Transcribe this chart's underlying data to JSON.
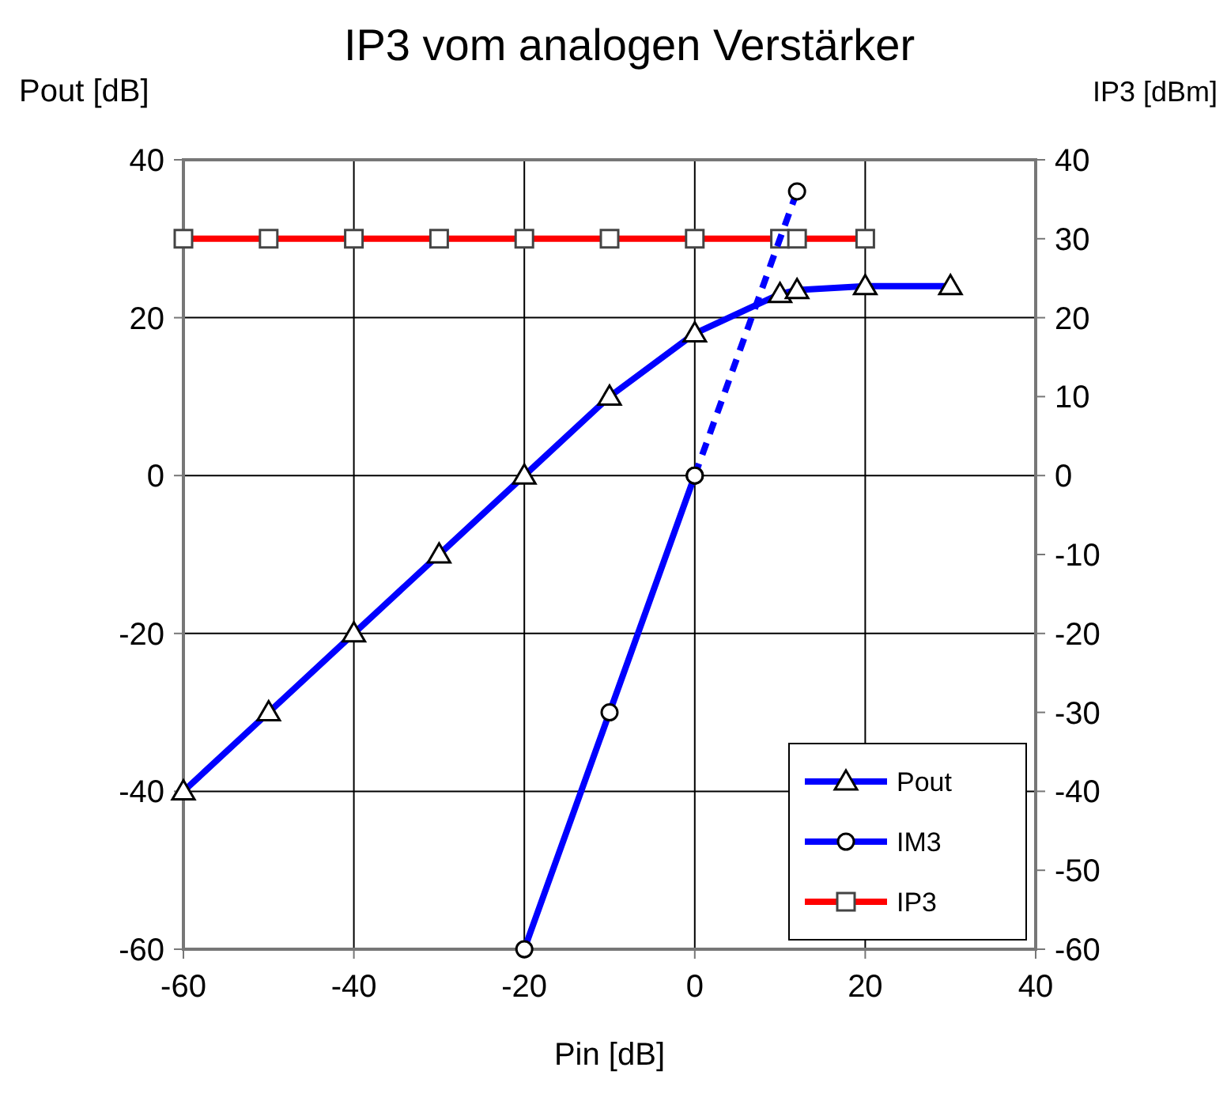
{
  "chart_data": {
    "type": "line",
    "title": "IP3 vom analogen Verstärker",
    "xlabel": "Pin [dB]",
    "ylabel": "Pout [dB]",
    "y2label": "IP3 [dBm]",
    "xlim": [
      -60,
      40
    ],
    "xticks": [
      -60,
      -40,
      -20,
      0,
      20,
      40
    ],
    "ylim": [
      -60,
      40
    ],
    "yticks": [
      -60,
      -40,
      -20,
      0,
      20,
      40
    ],
    "y2lim": [
      -60,
      40
    ],
    "y2ticks": [
      -60,
      -50,
      -40,
      -30,
      -20,
      -10,
      0,
      10,
      20,
      30,
      40
    ],
    "grid": true,
    "legend": "bottom right",
    "series": [
      {
        "name": "Pout",
        "color": "#0000ff",
        "marker": "triangle",
        "x": [
          -60,
          -50,
          -40,
          -30,
          -20,
          -10,
          0,
          10,
          12,
          20,
          30
        ],
        "values": [
          -40,
          -30,
          -20,
          -10,
          0,
          10,
          18,
          23,
          23.5,
          24,
          24
        ]
      },
      {
        "name": "IM3",
        "color": "#0000ff",
        "marker": "circle",
        "x": [
          -20,
          -10,
          0
        ],
        "values": [
          -60,
          -30,
          0
        ]
      },
      {
        "name": "IP3",
        "color": "#ff0000",
        "marker": "square",
        "x": [
          -60,
          -50,
          -40,
          -30,
          -20,
          -10,
          0,
          10,
          12,
          20
        ],
        "values": [
          30,
          30,
          30,
          30,
          30,
          30,
          30,
          30,
          30,
          30
        ]
      },
      {
        "color": "#0000ff",
        "marker": "circle",
        "line_style": "dashed",
        "x": [
          0,
          12
        ],
        "values": [
          0,
          36
        ]
      }
    ]
  }
}
